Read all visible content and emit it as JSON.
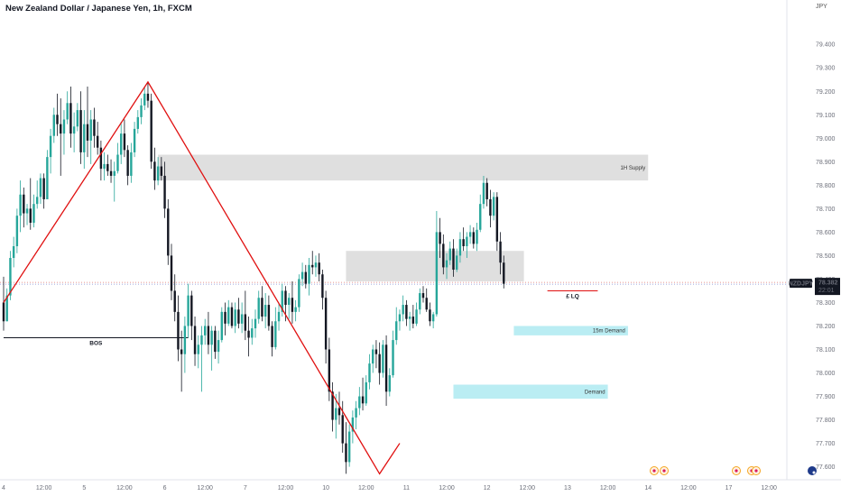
{
  "header": {
    "title": "New Zealand Dollar / Japanese Yen, 1h, FXCM",
    "currency": "JPY"
  },
  "colors": {
    "up": "#26a69a",
    "down": "#131722",
    "zigzag": "#e01010",
    "supply": "#d9d9d9",
    "demand": "#b2ebf2",
    "price_tag": "#131722"
  },
  "chart_data": {
    "type": "candlestick",
    "symbol": "NZDJPY",
    "timeframe": "1h",
    "ylim": [
      77.56,
      79.52
    ],
    "yticks": [
      "79.400",
      "79.300",
      "79.200",
      "79.100",
      "79.000",
      "78.900",
      "78.800",
      "78.700",
      "78.600",
      "78.500",
      "78.400",
      "78.300",
      "78.200",
      "78.100",
      "78.000",
      "77.900",
      "77.800",
      "77.700",
      "77.600"
    ],
    "xticks": [
      {
        "bar": 0,
        "label": "4"
      },
      {
        "bar": 12,
        "label": "12:00"
      },
      {
        "bar": 24,
        "label": "5"
      },
      {
        "bar": 36,
        "label": "12:00"
      },
      {
        "bar": 48,
        "label": "6"
      },
      {
        "bar": 60,
        "label": "12:00"
      },
      {
        "bar": 72,
        "label": "7"
      },
      {
        "bar": 84,
        "label": "12:00"
      },
      {
        "bar": 96,
        "label": "10"
      },
      {
        "bar": 108,
        "label": "12:00"
      },
      {
        "bar": 120,
        "label": "11"
      },
      {
        "bar": 132,
        "label": "12:00"
      },
      {
        "bar": 144,
        "label": "12"
      },
      {
        "bar": 156,
        "label": "12:00"
      },
      {
        "bar": 168,
        "label": "13"
      },
      {
        "bar": 180,
        "label": "12:00"
      },
      {
        "bar": 192,
        "label": "14"
      },
      {
        "bar": 204,
        "label": "12:00"
      },
      {
        "bar": 216,
        "label": "17"
      },
      {
        "bar": 228,
        "label": "12:00"
      }
    ],
    "current_price": {
      "symbol": "NZDJPY",
      "value": "78.382",
      "countdown": "22:01"
    },
    "pivots": [
      {
        "bar": 0,
        "price": 78.3
      },
      {
        "bar": 43,
        "price": 79.24
      },
      {
        "bar": 112,
        "price": 77.57
      },
      {
        "bar": 118,
        "price": 77.7
      }
    ],
    "zones": [
      {
        "label": "1H Supply",
        "kind": "supply",
        "bar_start": 46,
        "bar_end": 192,
        "top": 78.93,
        "bottom": 78.82
      },
      {
        "label": "",
        "kind": "supply",
        "bar_start": 102,
        "bar_end": 155,
        "top": 78.52,
        "bottom": 78.39
      },
      {
        "label": "15m Demand",
        "kind": "demand",
        "bar_start": 152,
        "bar_end": 186,
        "top": 78.2,
        "bottom": 78.16
      },
      {
        "label": "Demand",
        "kind": "demand",
        "bar_start": 134,
        "bar_end": 180,
        "top": 77.95,
        "bottom": 77.89
      }
    ],
    "annotations": [
      {
        "label": "BOS",
        "price": 78.15,
        "bar_start": 0,
        "bar_end": 55
      },
      {
        "label": "£ LQ",
        "price": 78.35,
        "bar_start": 162,
        "bar_end": 177
      }
    ],
    "candles": [
      [
        78.3,
        78.41,
        78.18,
        78.22
      ],
      [
        78.22,
        78.36,
        78.22,
        78.33
      ],
      [
        78.33,
        78.52,
        78.31,
        78.49
      ],
      [
        78.49,
        78.58,
        78.45,
        78.54
      ],
      [
        78.54,
        78.7,
        78.51,
        78.67
      ],
      [
        78.67,
        78.82,
        78.6,
        78.76
      ],
      [
        78.76,
        78.79,
        78.62,
        78.68
      ],
      [
        78.68,
        78.72,
        78.63,
        78.7
      ],
      [
        78.7,
        78.83,
        78.61,
        78.64
      ],
      [
        78.64,
        78.76,
        78.62,
        78.72
      ],
      [
        78.72,
        78.82,
        78.7,
        78.75
      ],
      [
        78.75,
        78.85,
        78.72,
        78.83
      ],
      [
        78.83,
        78.85,
        78.7,
        78.74
      ],
      [
        78.74,
        78.95,
        78.74,
        78.92
      ],
      [
        78.92,
        79.04,
        78.85,
        79.01
      ],
      [
        79.01,
        79.13,
        78.98,
        79.1
      ],
      [
        79.1,
        79.19,
        79.01,
        79.06
      ],
      [
        79.06,
        79.17,
        78.84,
        79.02
      ],
      [
        79.02,
        79.12,
        78.93,
        79.08
      ],
      [
        79.08,
        79.2,
        79.06,
        79.15
      ],
      [
        79.15,
        79.22,
        78.96,
        79.02
      ],
      [
        79.02,
        79.11,
        78.94,
        79.05
      ],
      [
        79.05,
        79.15,
        79.03,
        79.12
      ],
      [
        79.12,
        79.2,
        78.89,
        78.94
      ],
      [
        78.94,
        79.12,
        78.87,
        79.06
      ],
      [
        79.06,
        79.22,
        78.92,
        78.99
      ],
      [
        78.99,
        79.12,
        78.89,
        79.08
      ],
      [
        79.08,
        79.13,
        78.96,
        79.01
      ],
      [
        79.01,
        79.07,
        78.93,
        78.96
      ],
      [
        78.96,
        78.99,
        78.82,
        78.87
      ],
      [
        78.87,
        78.94,
        78.82,
        78.89
      ],
      [
        78.89,
        78.93,
        78.84,
        78.86
      ],
      [
        78.86,
        78.91,
        78.81,
        78.84
      ],
      [
        78.84,
        78.9,
        78.73,
        78.86
      ],
      [
        78.86,
        78.98,
        78.85,
        78.93
      ],
      [
        78.93,
        79.07,
        78.89,
        79.02
      ],
      [
        79.02,
        79.08,
        78.92,
        78.95
      ],
      [
        78.95,
        78.97,
        78.8,
        78.84
      ],
      [
        78.84,
        78.98,
        78.81,
        78.94
      ],
      [
        78.94,
        79.07,
        78.92,
        79.04
      ],
      [
        79.04,
        79.12,
        79.02,
        79.09
      ],
      [
        79.09,
        79.17,
        79.06,
        79.14
      ],
      [
        79.14,
        79.22,
        79.12,
        79.19
      ],
      [
        79.19,
        79.24,
        79.13,
        79.16
      ],
      [
        79.16,
        79.19,
        78.87,
        78.9
      ],
      [
        78.9,
        78.96,
        78.78,
        78.82
      ],
      [
        78.82,
        78.92,
        78.8,
        78.88
      ],
      [
        78.88,
        78.92,
        78.82,
        78.84
      ],
      [
        78.84,
        78.9,
        78.66,
        78.7
      ],
      [
        78.7,
        78.74,
        78.46,
        78.5
      ],
      [
        78.5,
        78.55,
        78.31,
        78.35
      ],
      [
        78.35,
        78.42,
        78.22,
        78.26
      ],
      [
        78.26,
        78.33,
        78.05,
        78.1
      ],
      [
        78.1,
        78.18,
        77.92,
        78.08
      ],
      [
        78.08,
        78.24,
        78.0,
        78.2
      ],
      [
        78.2,
        78.38,
        78.15,
        78.33
      ],
      [
        78.33,
        78.35,
        78.14,
        78.2
      ],
      [
        78.2,
        78.24,
        78.03,
        78.08
      ],
      [
        78.08,
        78.16,
        78.02,
        78.12
      ],
      [
        78.12,
        78.2,
        77.92,
        78.16
      ],
      [
        78.16,
        78.23,
        78.12,
        78.2
      ],
      [
        78.2,
        78.26,
        78.08,
        78.12
      ],
      [
        78.12,
        78.2,
        78.01,
        78.18
      ],
      [
        78.18,
        78.2,
        78.06,
        78.09
      ],
      [
        78.09,
        78.18,
        78.04,
        78.14
      ],
      [
        78.14,
        78.28,
        78.13,
        78.26
      ],
      [
        78.26,
        78.3,
        78.16,
        78.21
      ],
      [
        78.21,
        78.31,
        78.2,
        78.28
      ],
      [
        78.28,
        78.3,
        78.19,
        78.2
      ],
      [
        78.2,
        78.3,
        78.17,
        78.27
      ],
      [
        78.27,
        78.32,
        78.19,
        78.21
      ],
      [
        78.21,
        78.3,
        78.17,
        78.25
      ],
      [
        78.25,
        78.35,
        78.14,
        78.18
      ],
      [
        78.18,
        78.24,
        78.07,
        78.15
      ],
      [
        78.15,
        78.23,
        78.12,
        78.19
      ],
      [
        78.19,
        78.27,
        78.15,
        78.23
      ],
      [
        78.23,
        78.35,
        78.21,
        78.32
      ],
      [
        78.32,
        78.37,
        78.22,
        78.24
      ],
      [
        78.24,
        78.34,
        78.19,
        78.29
      ],
      [
        78.29,
        78.33,
        78.18,
        78.2
      ],
      [
        78.2,
        78.22,
        78.07,
        78.11
      ],
      [
        78.11,
        78.28,
        78.1,
        78.22
      ],
      [
        78.22,
        78.3,
        78.18,
        78.26
      ],
      [
        78.26,
        78.38,
        78.24,
        78.35
      ],
      [
        78.35,
        78.37,
        78.22,
        78.29
      ],
      [
        78.29,
        78.34,
        78.23,
        78.32
      ],
      [
        78.32,
        78.39,
        78.21,
        78.26
      ],
      [
        78.26,
        78.31,
        78.22,
        78.28
      ],
      [
        78.28,
        78.42,
        78.26,
        78.4
      ],
      [
        78.4,
        78.47,
        78.37,
        78.43
      ],
      [
        78.43,
        78.46,
        78.36,
        78.38
      ],
      [
        78.38,
        78.49,
        78.33,
        78.46
      ],
      [
        78.46,
        78.52,
        78.42,
        78.45
      ],
      [
        78.45,
        78.5,
        78.41,
        78.47
      ],
      [
        78.47,
        78.51,
        78.39,
        78.42
      ],
      [
        78.42,
        78.44,
        78.27,
        78.32
      ],
      [
        78.32,
        78.35,
        78.04,
        78.1
      ],
      [
        78.1,
        78.15,
        77.88,
        77.92
      ],
      [
        77.92,
        77.96,
        77.75,
        77.8
      ],
      [
        77.8,
        77.91,
        77.72,
        77.85
      ],
      [
        77.85,
        77.92,
        77.78,
        77.82
      ],
      [
        77.82,
        77.88,
        77.66,
        77.7
      ],
      [
        77.7,
        77.79,
        77.57,
        77.62
      ],
      [
        77.62,
        77.78,
        77.6,
        77.75
      ],
      [
        77.75,
        77.84,
        77.7,
        77.81
      ],
      [
        77.81,
        77.88,
        77.76,
        77.85
      ],
      [
        77.85,
        77.94,
        77.82,
        77.9
      ],
      [
        77.9,
        77.98,
        77.84,
        77.87
      ],
      [
        77.87,
        77.99,
        77.86,
        77.96
      ],
      [
        77.96,
        78.08,
        77.93,
        78.04
      ],
      [
        78.04,
        78.12,
        78.0,
        78.1
      ],
      [
        78.1,
        78.14,
        78.02,
        78.08
      ],
      [
        78.08,
        78.13,
        77.95,
        78.0
      ],
      [
        78.0,
        78.14,
        77.98,
        78.12
      ],
      [
        78.12,
        78.16,
        77.86,
        77.92
      ],
      [
        77.92,
        78.02,
        77.9,
        77.99
      ],
      [
        77.99,
        78.18,
        77.98,
        78.14
      ],
      [
        78.14,
        78.28,
        78.12,
        78.22
      ],
      [
        78.22,
        78.27,
        78.18,
        78.25
      ],
      [
        78.25,
        78.33,
        78.22,
        78.29
      ],
      [
        78.29,
        78.31,
        78.2,
        78.23
      ],
      [
        78.23,
        78.26,
        78.18,
        78.24
      ],
      [
        78.24,
        78.29,
        78.19,
        78.21
      ],
      [
        78.21,
        78.3,
        78.2,
        78.27
      ],
      [
        78.27,
        78.36,
        78.25,
        78.34
      ],
      [
        78.34,
        78.37,
        78.3,
        78.32
      ],
      [
        78.32,
        78.36,
        78.26,
        78.27
      ],
      [
        78.27,
        78.3,
        78.2,
        78.22
      ],
      [
        78.22,
        78.26,
        78.19,
        78.25
      ],
      [
        78.25,
        78.69,
        78.24,
        78.6
      ],
      [
        78.6,
        78.66,
        78.49,
        78.55
      ],
      [
        78.55,
        78.59,
        78.42,
        78.45
      ],
      [
        78.45,
        78.51,
        78.4,
        78.48
      ],
      [
        78.48,
        78.56,
        78.46,
        78.53
      ],
      [
        78.53,
        78.57,
        78.41,
        78.44
      ],
      [
        78.44,
        78.53,
        78.43,
        78.5
      ],
      [
        78.5,
        78.6,
        78.47,
        78.57
      ],
      [
        78.57,
        78.62,
        78.52,
        78.54
      ],
      [
        78.54,
        78.6,
        78.49,
        78.58
      ],
      [
        78.58,
        78.63,
        78.55,
        78.6
      ],
      [
        78.6,
        78.62,
        78.53,
        78.55
      ],
      [
        78.55,
        78.64,
        78.52,
        78.61
      ],
      [
        78.61,
        78.76,
        78.6,
        78.72
      ],
      [
        78.72,
        78.84,
        78.7,
        78.81
      ],
      [
        78.81,
        78.83,
        78.71,
        78.74
      ],
      [
        78.74,
        78.78,
        78.62,
        78.67
      ],
      [
        78.67,
        78.77,
        78.65,
        78.75
      ],
      [
        78.75,
        78.77,
        78.52,
        78.56
      ],
      [
        78.56,
        78.6,
        78.42,
        78.47
      ],
      [
        78.47,
        78.5,
        78.36,
        78.38
      ]
    ]
  }
}
